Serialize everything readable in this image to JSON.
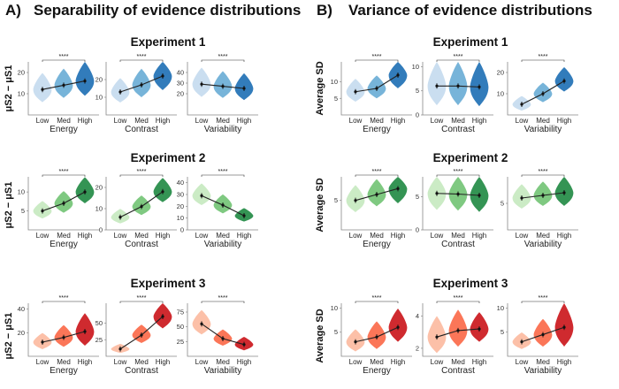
{
  "panels": [
    {
      "letter": "A)",
      "title": "Separability of evidence distributions",
      "ylabel": "μS2 − μS1"
    },
    {
      "letter": "B)",
      "title": "Variance of evidence distributions",
      "ylabel": "Average SD"
    }
  ],
  "experiments": [
    "Experiment 1",
    "Experiment 2",
    "Experiment 3"
  ],
  "categories": [
    "Low",
    "Med",
    "High"
  ],
  "significance": "****",
  "colors": {
    "blue": [
      "#c6dbef",
      "#6baed6",
      "#2171b5"
    ],
    "green": [
      "#c7e9c0",
      "#74c476",
      "#238b45"
    ],
    "red": [
      "#fcbba1",
      "#fb6a4a",
      "#cb181d"
    ]
  },
  "chart_data": [
    {
      "type": "violin",
      "panel": "A",
      "experiment": "Experiment 1",
      "xlabel": "Energy",
      "categories": [
        "Low",
        "Med",
        "High"
      ],
      "means": [
        12,
        14,
        16
      ],
      "spread": [
        6,
        6,
        7
      ],
      "ylim": [
        0,
        25
      ],
      "yticks": [
        10,
        20
      ],
      "palette": "blue"
    },
    {
      "type": "violin",
      "panel": "A",
      "experiment": "Experiment 1",
      "xlabel": "Contrast",
      "categories": [
        "Low",
        "Med",
        "High"
      ],
      "means": [
        13,
        17,
        22
      ],
      "spread": [
        6,
        7,
        8
      ],
      "ylim": [
        0,
        30
      ],
      "yticks": [
        10,
        20
      ],
      "palette": "blue"
    },
    {
      "type": "violin",
      "panel": "A",
      "experiment": "Experiment 1",
      "xlabel": "Variability",
      "categories": [
        "Low",
        "Med",
        "High"
      ],
      "means": [
        29,
        27,
        25
      ],
      "spread": [
        12,
        11,
        11
      ],
      "ylim": [
        0,
        50
      ],
      "yticks": [
        20,
        30,
        40
      ],
      "palette": "blue"
    },
    {
      "type": "violin",
      "panel": "B",
      "experiment": "Experiment 1",
      "xlabel": "Energy",
      "categories": [
        "Low",
        "Med",
        "High"
      ],
      "means": [
        7,
        8,
        12
      ],
      "spread": [
        3,
        3,
        4
      ],
      "ylim": [
        0,
        16
      ],
      "yticks": [
        5,
        10
      ],
      "palette": "blue"
    },
    {
      "type": "violin",
      "panel": "B",
      "experiment": "Experiment 1",
      "xlabel": "Contrast",
      "categories": [
        "Low",
        "Med",
        "High"
      ],
      "means": [
        6,
        6,
        5.8
      ],
      "spread": [
        4,
        4,
        4
      ],
      "ylim": [
        0,
        11
      ],
      "yticks": [
        0,
        5,
        10
      ],
      "palette": "blue"
    },
    {
      "type": "violin",
      "panel": "B",
      "experiment": "Experiment 1",
      "xlabel": "Variability",
      "categories": [
        "Low",
        "Med",
        "High"
      ],
      "means": [
        5,
        10,
        16
      ],
      "spread": [
        3,
        4,
        5
      ],
      "ylim": [
        0,
        25
      ],
      "yticks": [
        10,
        20
      ],
      "palette": "blue"
    },
    {
      "type": "violin",
      "panel": "A",
      "experiment": "Experiment 2",
      "xlabel": "Energy",
      "categories": [
        "Low",
        "Med",
        "High"
      ],
      "means": [
        5,
        7,
        10
      ],
      "spread": [
        2,
        2.5,
        3
      ],
      "ylim": [
        0,
        14
      ],
      "yticks": [
        5,
        10
      ],
      "palette": "green"
    },
    {
      "type": "violin",
      "panel": "A",
      "experiment": "Experiment 2",
      "xlabel": "Contrast",
      "categories": [
        "Low",
        "Med",
        "High"
      ],
      "means": [
        6,
        11,
        18
      ],
      "spread": [
        3,
        4,
        5
      ],
      "ylim": [
        0,
        25
      ],
      "yticks": [
        0,
        10,
        20
      ],
      "palette": "green"
    },
    {
      "type": "violin",
      "panel": "A",
      "experiment": "Experiment 2",
      "xlabel": "Variability",
      "categories": [
        "Low",
        "Med",
        "High"
      ],
      "means": [
        29,
        21,
        12
      ],
      "spread": [
        8,
        7,
        5
      ],
      "ylim": [
        0,
        45
      ],
      "yticks": [
        0,
        10,
        20,
        30,
        40
      ],
      "palette": "green"
    },
    {
      "type": "violin",
      "panel": "B",
      "experiment": "Experiment 2",
      "xlabel": "Energy",
      "categories": [
        "Low",
        "Med",
        "High"
      ],
      "means": [
        5,
        6,
        7
      ],
      "spread": [
        2,
        2,
        2.5
      ],
      "ylim": [
        0,
        9
      ],
      "yticks": [
        5
      ],
      "palette": "green"
    },
    {
      "type": "violin",
      "panel": "B",
      "experiment": "Experiment 2",
      "xlabel": "Contrast",
      "categories": [
        "Low",
        "Med",
        "High"
      ],
      "means": [
        5.5,
        5.4,
        5.2
      ],
      "spread": [
        2.5,
        2.5,
        2.5
      ],
      "ylim": [
        0,
        8
      ],
      "yticks": [
        0,
        5
      ],
      "palette": "green"
    },
    {
      "type": "violin",
      "panel": "B",
      "experiment": "Experiment 2",
      "xlabel": "Variability",
      "categories": [
        "Low",
        "Med",
        "High"
      ],
      "means": [
        6,
        6.5,
        7
      ],
      "spread": [
        2,
        2,
        2.5
      ],
      "ylim": [
        0,
        10
      ],
      "yticks": [
        5
      ],
      "palette": "green"
    },
    {
      "type": "violin",
      "panel": "A",
      "experiment": "Experiment 3",
      "xlabel": "Energy",
      "categories": [
        "Low",
        "Med",
        "High"
      ],
      "means": [
        12,
        16,
        21
      ],
      "spread": [
        6,
        8,
        12
      ],
      "ylim": [
        0,
        45
      ],
      "yticks": [
        20,
        40
      ],
      "palette": "red"
    },
    {
      "type": "violin",
      "panel": "A",
      "experiment": "Experiment 3",
      "xlabel": "Contrast",
      "categories": [
        "Low",
        "Med",
        "High"
      ],
      "means": [
        11,
        32,
        60
      ],
      "spread": [
        6,
        12,
        18
      ],
      "ylim": [
        0,
        80
      ],
      "yticks": [
        25,
        50
      ],
      "palette": "red"
    },
    {
      "type": "violin",
      "panel": "A",
      "experiment": "Experiment 3",
      "xlabel": "Variability",
      "categories": [
        "Low",
        "Med",
        "High"
      ],
      "means": [
        55,
        30,
        20
      ],
      "spread": [
        18,
        12,
        10
      ],
      "ylim": [
        0,
        90
      ],
      "yticks": [
        25,
        50,
        75
      ],
      "palette": "red"
    },
    {
      "type": "violin",
      "panel": "B",
      "experiment": "Experiment 3",
      "xlabel": "Energy",
      "categories": [
        "Low",
        "Med",
        "High"
      ],
      "means": [
        3,
        4,
        6
      ],
      "spread": [
        2,
        2.5,
        3
      ],
      "ylim": [
        0,
        11
      ],
      "yticks": [
        5,
        10
      ],
      "palette": "red"
    },
    {
      "type": "violin",
      "panel": "B",
      "experiment": "Experiment 3",
      "xlabel": "Contrast",
      "categories": [
        "Low",
        "Med",
        "High"
      ],
      "means": [
        2.7,
        3.1,
        3.2
      ],
      "spread": [
        1,
        1,
        0.8
      ],
      "ylim": [
        1.5,
        4.8
      ],
      "yticks": [
        2,
        4
      ],
      "palette": "red"
    },
    {
      "type": "violin",
      "panel": "B",
      "experiment": "Experiment 3",
      "xlabel": "Variability",
      "categories": [
        "Low",
        "Med",
        "High"
      ],
      "means": [
        3,
        4.5,
        6
      ],
      "spread": [
        1.5,
        2.5,
        4
      ],
      "ylim": [
        0,
        11
      ],
      "yticks": [
        5,
        10
      ],
      "palette": "red"
    }
  ]
}
